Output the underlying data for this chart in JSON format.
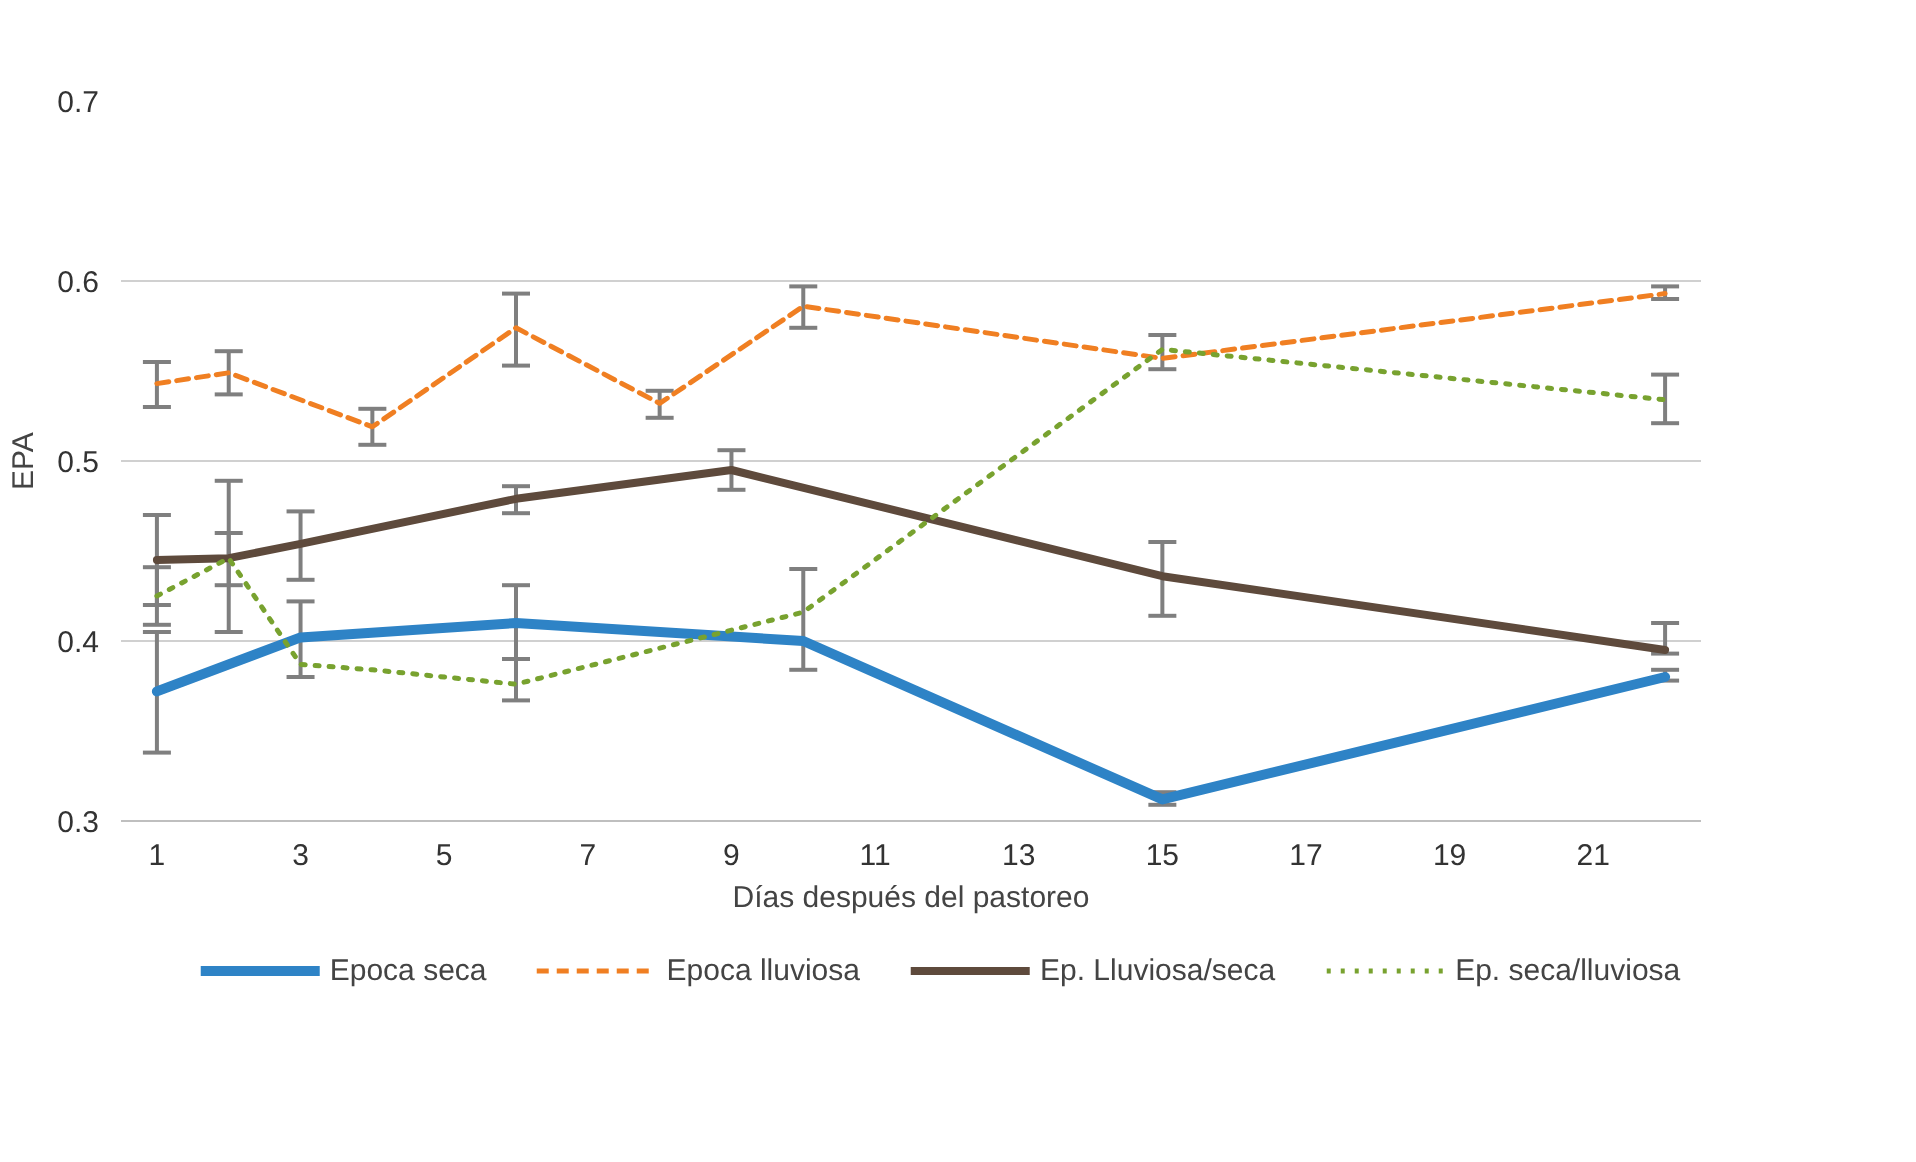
{
  "chart_data": {
    "type": "line",
    "xlabel": "Días después del pastoreo",
    "ylabel": "EPA",
    "xlim": [
      0.5,
      22.5
    ],
    "xticks": [
      1,
      3,
      5,
      7,
      9,
      11,
      13,
      15,
      17,
      19,
      21
    ],
    "ylim": [
      0.3,
      0.7
    ],
    "yticks": [
      0.3,
      0.4,
      0.5,
      0.6,
      0.7
    ],
    "grid": "y",
    "legend": "bottom",
    "series": [
      {
        "name": "Epoca seca",
        "color": "#2e83c6",
        "line_style": "solid",
        "x": [
          1,
          3,
          6,
          10,
          15,
          22
        ],
        "values": [
          0.372,
          0.402,
          0.41,
          0.4,
          0.312,
          0.38
        ],
        "errors": [
          [
            0.338,
            0.405
          ],
          [
            0.38,
            0.422
          ],
          [
            0.39,
            0.431
          ],
          null,
          [
            0.309,
            0.316
          ],
          [
            0.378,
            0.384
          ]
        ]
      },
      {
        "name": "Epoca lluviosa",
        "color": "#f07f22",
        "line_style": "dashed",
        "x": [
          1,
          2,
          4,
          6,
          8,
          10,
          15,
          22
        ],
        "values": [
          0.543,
          0.549,
          0.519,
          0.574,
          0.532,
          0.586,
          0.557,
          0.593
        ],
        "errors": [
          [
            0.53,
            0.555
          ],
          [
            0.537,
            0.561
          ],
          [
            0.509,
            0.529
          ],
          [
            0.553,
            0.593
          ],
          [
            0.524,
            0.539
          ],
          [
            0.574,
            0.597
          ],
          [
            0.551,
            0.57
          ],
          [
            0.59,
            0.597
          ]
        ]
      },
      {
        "name": "Ep. Lluviosa/seca",
        "color": "#5e4a3c",
        "line_style": "solid",
        "x": [
          1,
          2,
          3,
          6,
          9,
          15,
          22
        ],
        "values": [
          0.445,
          0.446,
          0.454,
          0.479,
          0.495,
          0.436,
          0.395
        ],
        "errors": [
          [
            0.42,
            0.47
          ],
          [
            0.405,
            0.489
          ],
          [
            0.434,
            0.472
          ],
          [
            0.471,
            0.486
          ],
          [
            0.484,
            0.506
          ],
          [
            0.414,
            0.455
          ],
          [
            0.393,
            0.41
          ]
        ]
      },
      {
        "name": "Ep. seca/lluviosa",
        "color": "#78a22f",
        "line_style": "dotted",
        "x": [
          1,
          2,
          3,
          4,
          6,
          10,
          15,
          22
        ],
        "values": [
          0.425,
          0.446,
          0.387,
          0.384,
          0.376,
          0.416,
          0.562,
          0.534
        ],
        "errors": [
          [
            0.409,
            0.441
          ],
          [
            0.431,
            0.46
          ],
          null,
          null,
          [
            0.367,
            0.39
          ],
          [
            0.384,
            0.44
          ],
          null,
          [
            0.521,
            0.548
          ]
        ]
      }
    ]
  }
}
